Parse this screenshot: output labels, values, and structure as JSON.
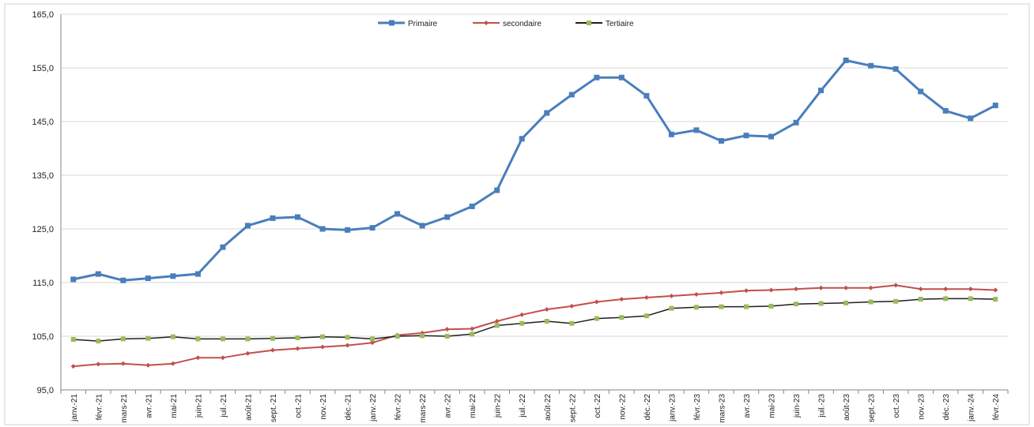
{
  "chart_data": {
    "type": "line",
    "title": "",
    "xlabel": "",
    "ylabel": "",
    "ylim": [
      95,
      165
    ],
    "yticks": [
      "95,0",
      "105,0",
      "115,0",
      "125,0",
      "135,0",
      "145,0",
      "155,0",
      "165,0"
    ],
    "grid": true,
    "legend_position": "top-center",
    "categories": [
      "janv.-21",
      "févr.-21",
      "mars-21",
      "avr.-21",
      "mai-21",
      "juin-21",
      "juil.-21",
      "août-21",
      "sept.-21",
      "oct.-21",
      "nov.-21",
      "déc.-21",
      "janv.-22",
      "févr.-22",
      "mars-22",
      "avr.-22",
      "mai-22",
      "juin-22",
      "juil.-22",
      "août-22",
      "sept.-22",
      "oct.-22",
      "nov.-22",
      "déc.-22",
      "janv.-23",
      "févr.-23",
      "mars-23",
      "avr.-23",
      "mai-23",
      "juin-23",
      "juil.-23",
      "août-23",
      "sept.-23",
      "oct.-23",
      "nov.-23",
      "déc.-23",
      "janv.-24",
      "févr.-24"
    ],
    "series": [
      {
        "name": "Primaire",
        "color": "#4a7ebb",
        "marker_color": "#4a7ebb",
        "values": [
          115.6,
          116.6,
          115.4,
          115.8,
          116.2,
          116.6,
          121.6,
          125.6,
          127.0,
          127.2,
          125.0,
          124.8,
          125.2,
          127.8,
          125.6,
          127.2,
          129.2,
          132.2,
          141.8,
          146.6,
          150.0,
          153.2,
          153.2,
          149.8,
          142.6,
          143.4,
          141.4,
          142.4,
          142.2,
          144.8,
          150.8,
          156.4,
          155.4,
          154.8,
          150.6,
          147.0,
          145.6,
          148.0
        ]
      },
      {
        "name": "secondaire",
        "color": "#c0504d",
        "marker_color": "#c0504d",
        "values": [
          99.4,
          99.8,
          99.9,
          99.6,
          99.9,
          101.0,
          101.0,
          101.8,
          102.4,
          102.7,
          103.0,
          103.3,
          103.8,
          105.2,
          105.6,
          106.3,
          106.4,
          107.8,
          109.0,
          110.0,
          110.6,
          111.4,
          111.9,
          112.2,
          112.5,
          112.8,
          113.1,
          113.5,
          113.6,
          113.8,
          114.0,
          114.0,
          114.0,
          114.5,
          113.8,
          113.8,
          113.8,
          113.6
        ]
      },
      {
        "name": "Tertiaire",
        "color": "#1f1f1f",
        "marker_color": "#9bbb59",
        "values": [
          104.4,
          104.1,
          104.5,
          104.6,
          104.9,
          104.5,
          104.5,
          104.5,
          104.6,
          104.7,
          104.9,
          104.8,
          104.5,
          105.0,
          105.1,
          105.0,
          105.4,
          107.0,
          107.4,
          107.8,
          107.4,
          108.3,
          108.5,
          108.8,
          110.2,
          110.4,
          110.5,
          110.5,
          110.6,
          111.0,
          111.1,
          111.2,
          111.4,
          111.5,
          111.9,
          112.0,
          112.0,
          111.9
        ]
      }
    ]
  }
}
